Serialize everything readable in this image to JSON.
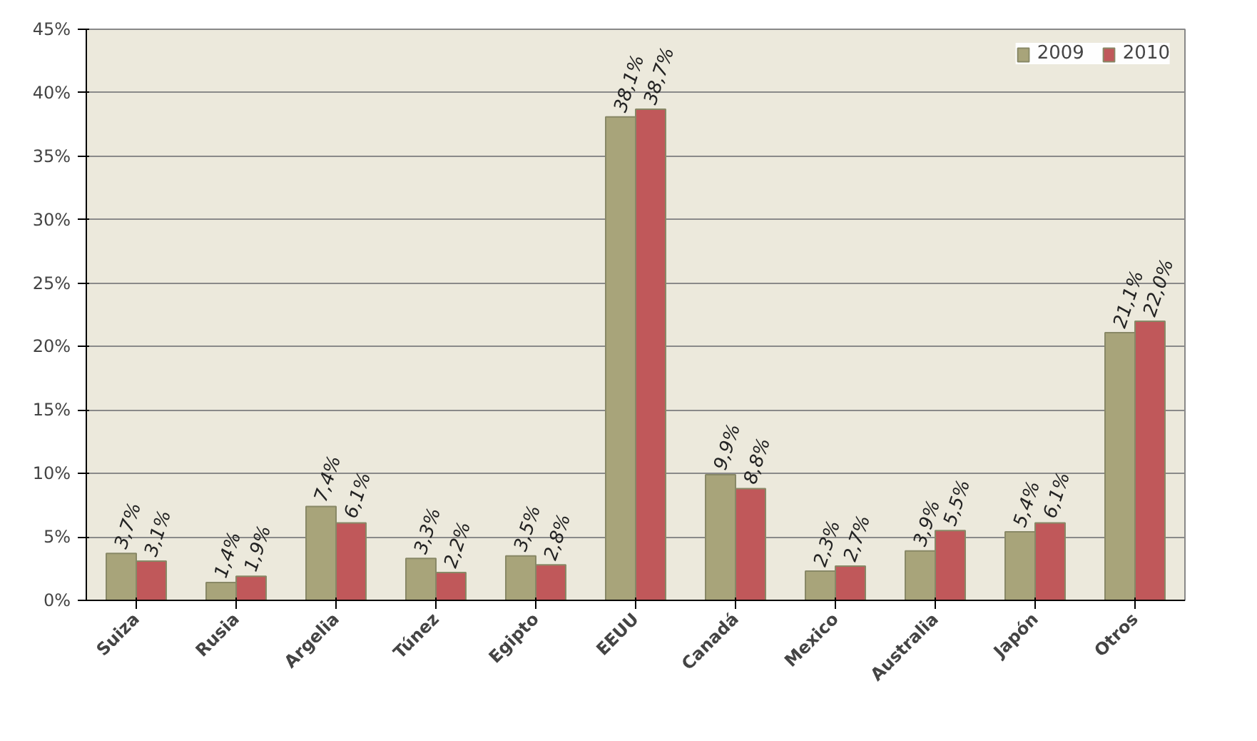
{
  "chart_data": {
    "type": "bar",
    "categories": [
      "Suiza",
      "Rusia",
      "Argelia",
      "Túnez",
      "Egipto",
      "EEUU",
      "Canadá",
      "Mexico",
      "Australia",
      "Japón",
      "Otros"
    ],
    "series": [
      {
        "name": "2009",
        "color": "#a8a47a",
        "values": [
          3.7,
          1.4,
          7.4,
          3.3,
          3.5,
          38.1,
          9.9,
          2.3,
          3.9,
          5.4,
          21.1
        ],
        "value_labels": [
          "3,7%",
          "1,4%",
          "7,4%",
          "3,3%",
          "3,5%",
          "38,1%",
          "9,9%",
          "2,3%",
          "3,9%",
          "5,4%",
          "21,1%"
        ]
      },
      {
        "name": "2010",
        "color": "#c0585a",
        "values": [
          3.1,
          1.9,
          6.1,
          2.2,
          2.8,
          38.7,
          8.8,
          2.7,
          5.5,
          6.1,
          22.0
        ],
        "value_labels": [
          "3,1%",
          "1,9%",
          "6,1%",
          "2,2%",
          "2,8%",
          "38,7%",
          "8,8%",
          "2,7%",
          "5,5%",
          "6,1%",
          "22,0%"
        ]
      }
    ],
    "ylim": [
      0,
      45
    ],
    "yticks": [
      {
        "value": 0,
        "label": "0%"
      },
      {
        "value": 5,
        "label": "5%"
      },
      {
        "value": 10,
        "label": "10%"
      },
      {
        "value": 15,
        "label": "15%"
      },
      {
        "value": 20,
        "label": "20%"
      },
      {
        "value": 25,
        "label": "25%"
      },
      {
        "value": 30,
        "label": "30%"
      },
      {
        "value": 35,
        "label": "35%"
      },
      {
        "value": 40,
        "label": "40%"
      },
      {
        "value": 45,
        "label": "45%"
      }
    ],
    "grid": "y",
    "legend": "top right"
  }
}
